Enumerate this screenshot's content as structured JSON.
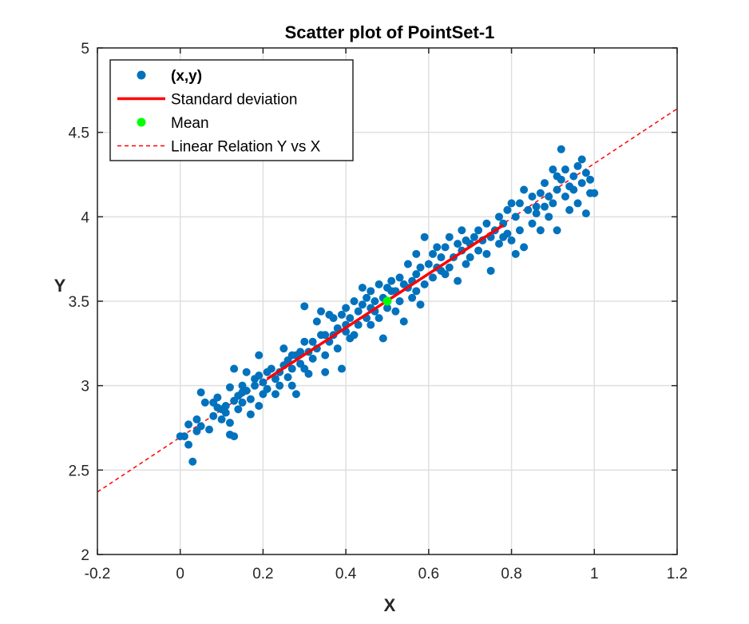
{
  "chart_data": {
    "type": "scatter",
    "title": "Scatter plot of PointSet-1",
    "xlabel": "X",
    "ylabel": "Y",
    "xlim": [
      -0.2,
      1.2
    ],
    "ylim": [
      2,
      5
    ],
    "xticks": [
      -0.2,
      0,
      0.2,
      0.4,
      0.6,
      0.8,
      1,
      1.2
    ],
    "xtick_labels": [
      "-0.2",
      "0",
      "0.2",
      "0.4",
      "0.6",
      "0.8",
      "1",
      "1.2"
    ],
    "yticks": [
      2,
      2.5,
      3,
      3.5,
      4,
      4.5,
      5
    ],
    "ytick_labels": [
      "2",
      "2.5",
      "3",
      "3.5",
      "4",
      "4.5",
      "5"
    ],
    "grid": true,
    "legend_position": "top-left",
    "legend": [
      {
        "label": "(x,y)",
        "style": "marker",
        "color": "#0072BD",
        "bold": true
      },
      {
        "label": "Standard deviation",
        "style": "solid-line",
        "color": "#FF0000"
      },
      {
        "label": "Mean",
        "style": "marker",
        "color": "#00FF00"
      },
      {
        "label": "Linear Relation Y vs X",
        "style": "dashed-line",
        "color": "#FF0000"
      }
    ],
    "series": [
      {
        "name": "(x,y)",
        "kind": "points",
        "color": "#0072BD",
        "points": [
          [
            0.02,
            2.65
          ],
          [
            0.03,
            2.55
          ],
          [
            0.01,
            2.7
          ],
          [
            0.04,
            2.73
          ],
          [
            0.05,
            2.76
          ],
          [
            0.02,
            2.77
          ],
          [
            0.06,
            2.9
          ],
          [
            0.05,
            2.96
          ],
          [
            0.07,
            2.74
          ],
          [
            0.08,
            2.82
          ],
          [
            0.09,
            2.93
          ],
          [
            0.09,
            2.87
          ],
          [
            0.1,
            2.8
          ],
          [
            0.1,
            2.86
          ],
          [
            0.11,
            2.84
          ],
          [
            0.11,
            2.88
          ],
          [
            0.12,
            2.71
          ],
          [
            0.12,
            2.78
          ],
          [
            0.13,
            2.7
          ],
          [
            0.12,
            2.99
          ],
          [
            0.13,
            2.91
          ],
          [
            0.14,
            2.94
          ],
          [
            0.14,
            2.86
          ],
          [
            0.15,
            3.0
          ],
          [
            0.15,
            2.96
          ],
          [
            0.13,
            3.1
          ],
          [
            0.16,
            3.08
          ],
          [
            0.16,
            2.97
          ],
          [
            0.17,
            2.92
          ],
          [
            0.17,
            2.83
          ],
          [
            0.18,
            3.04
          ],
          [
            0.18,
            3.0
          ],
          [
            0.19,
            3.06
          ],
          [
            0.19,
            2.88
          ],
          [
            0.2,
            2.95
          ],
          [
            0.2,
            3.02
          ],
          [
            0.21,
            2.98
          ],
          [
            0.19,
            3.18
          ],
          [
            0.22,
            3.1
          ],
          [
            0.23,
            3.04
          ],
          [
            0.23,
            2.95
          ],
          [
            0.24,
            3.08
          ],
          [
            0.24,
            3.0
          ],
          [
            0.25,
            3.12
          ],
          [
            0.25,
            3.22
          ],
          [
            0.26,
            3.15
          ],
          [
            0.26,
            3.05
          ],
          [
            0.27,
            3.1
          ],
          [
            0.27,
            3.0
          ],
          [
            0.28,
            2.95
          ],
          [
            0.28,
            3.18
          ],
          [
            0.29,
            3.2
          ],
          [
            0.29,
            3.13
          ],
          [
            0.3,
            3.26
          ],
          [
            0.3,
            3.1
          ],
          [
            0.31,
            3.07
          ],
          [
            0.31,
            3.2
          ],
          [
            0.32,
            3.16
          ],
          [
            0.3,
            3.47
          ],
          [
            0.32,
            3.26
          ],
          [
            0.33,
            3.38
          ],
          [
            0.33,
            3.22
          ],
          [
            0.34,
            3.3
          ],
          [
            0.34,
            3.44
          ],
          [
            0.35,
            3.18
          ],
          [
            0.35,
            3.08
          ],
          [
            0.36,
            3.26
          ],
          [
            0.36,
            3.42
          ],
          [
            0.37,
            3.3
          ],
          [
            0.37,
            3.4
          ],
          [
            0.38,
            3.34
          ],
          [
            0.38,
            3.22
          ],
          [
            0.39,
            3.1
          ],
          [
            0.39,
            3.42
          ],
          [
            0.4,
            3.36
          ],
          [
            0.4,
            3.46
          ],
          [
            0.41,
            3.28
          ],
          [
            0.41,
            3.4
          ],
          [
            0.42,
            3.3
          ],
          [
            0.42,
            3.5
          ],
          [
            0.43,
            3.44
          ],
          [
            0.43,
            3.36
          ],
          [
            0.44,
            3.58
          ],
          [
            0.44,
            3.48
          ],
          [
            0.45,
            3.52
          ],
          [
            0.45,
            3.4
          ],
          [
            0.46,
            3.36
          ],
          [
            0.46,
            3.56
          ],
          [
            0.47,
            3.5
          ],
          [
            0.47,
            3.44
          ],
          [
            0.48,
            3.6
          ],
          [
            0.48,
            3.4
          ],
          [
            0.49,
            3.28
          ],
          [
            0.49,
            3.52
          ],
          [
            0.5,
            3.46
          ],
          [
            0.51,
            3.56
          ],
          [
            0.51,
            3.62
          ],
          [
            0.52,
            3.44
          ],
          [
            0.52,
            3.56
          ],
          [
            0.53,
            3.64
          ],
          [
            0.53,
            3.5
          ],
          [
            0.54,
            3.6
          ],
          [
            0.54,
            3.38
          ],
          [
            0.55,
            3.58
          ],
          [
            0.55,
            3.72
          ],
          [
            0.56,
            3.52
          ],
          [
            0.56,
            3.62
          ],
          [
            0.57,
            3.66
          ],
          [
            0.57,
            3.78
          ],
          [
            0.58,
            3.7
          ],
          [
            0.58,
            3.48
          ],
          [
            0.59,
            3.6
          ],
          [
            0.59,
            3.88
          ],
          [
            0.6,
            3.72
          ],
          [
            0.61,
            3.64
          ],
          [
            0.61,
            3.78
          ],
          [
            0.62,
            3.7
          ],
          [
            0.62,
            3.82
          ],
          [
            0.63,
            3.76
          ],
          [
            0.64,
            3.66
          ],
          [
            0.64,
            3.82
          ],
          [
            0.65,
            3.7
          ],
          [
            0.65,
            3.88
          ],
          [
            0.66,
            3.76
          ],
          [
            0.67,
            3.62
          ],
          [
            0.67,
            3.84
          ],
          [
            0.68,
            3.8
          ],
          [
            0.68,
            3.92
          ],
          [
            0.69,
            3.72
          ],
          [
            0.7,
            3.84
          ],
          [
            0.7,
            3.76
          ],
          [
            0.71,
            3.88
          ],
          [
            0.72,
            3.8
          ],
          [
            0.72,
            3.92
          ],
          [
            0.73,
            3.86
          ],
          [
            0.74,
            3.78
          ],
          [
            0.74,
            3.96
          ],
          [
            0.75,
            3.68
          ],
          [
            0.75,
            3.88
          ],
          [
            0.76,
            3.92
          ],
          [
            0.77,
            3.84
          ],
          [
            0.77,
            4.0
          ],
          [
            0.78,
            3.96
          ],
          [
            0.79,
            3.9
          ],
          [
            0.79,
            4.04
          ],
          [
            0.8,
            3.86
          ],
          [
            0.8,
            4.08
          ],
          [
            0.81,
            3.78
          ],
          [
            0.81,
            4.0
          ],
          [
            0.82,
            3.92
          ],
          [
            0.82,
            4.08
          ],
          [
            0.83,
            4.16
          ],
          [
            0.83,
            3.82
          ],
          [
            0.84,
            4.04
          ],
          [
            0.85,
            3.96
          ],
          [
            0.85,
            4.12
          ],
          [
            0.86,
            4.02
          ],
          [
            0.87,
            3.92
          ],
          [
            0.87,
            4.14
          ],
          [
            0.88,
            4.06
          ],
          [
            0.88,
            4.2
          ],
          [
            0.89,
            4.0
          ],
          [
            0.89,
            4.12
          ],
          [
            0.9,
            4.28
          ],
          [
            0.9,
            4.08
          ],
          [
            0.91,
            3.92
          ],
          [
            0.91,
            4.16
          ],
          [
            0.92,
            4.4
          ],
          [
            0.92,
            4.22
          ],
          [
            0.93,
            4.12
          ],
          [
            0.93,
            4.28
          ],
          [
            0.94,
            4.18
          ],
          [
            0.94,
            4.04
          ],
          [
            0.95,
            4.24
          ],
          [
            0.95,
            4.16
          ],
          [
            0.96,
            4.3
          ],
          [
            0.96,
            4.08
          ],
          [
            0.97,
            4.2
          ],
          [
            0.97,
            4.34
          ],
          [
            0.98,
            4.02
          ],
          [
            0.98,
            4.26
          ],
          [
            0.99,
            4.14
          ],
          [
            0.99,
            4.22
          ],
          [
            1.0,
            4.14
          ],
          [
            0.91,
            4.24
          ],
          [
            0.86,
            4.06
          ],
          [
            0.78,
            3.88
          ],
          [
            0.69,
            3.86
          ],
          [
            0.63,
            3.68
          ],
          [
            0.57,
            3.56
          ],
          [
            0.5,
            3.58
          ],
          [
            0.46,
            3.46
          ],
          [
            0.4,
            3.32
          ],
          [
            0.35,
            3.3
          ],
          [
            0.27,
            3.18
          ],
          [
            0.21,
            3.08
          ],
          [
            0.15,
            2.9
          ],
          [
            0.08,
            2.9
          ],
          [
            0.04,
            2.8
          ],
          [
            0.0,
            2.7
          ]
        ]
      },
      {
        "name": "Standard deviation",
        "kind": "segment",
        "color": "#FF0000",
        "x": [
          0.21,
          0.78
        ],
        "y": [
          3.04,
          3.95
        ]
      },
      {
        "name": "Mean",
        "kind": "points",
        "color": "#00FF00",
        "points": [
          [
            0.5,
            3.5
          ]
        ]
      },
      {
        "name": "Linear Relation Y vs X",
        "kind": "dashed-line",
        "color": "#FF0000",
        "x": [
          -0.2,
          1.2
        ],
        "y": [
          2.37,
          4.64
        ]
      }
    ]
  }
}
